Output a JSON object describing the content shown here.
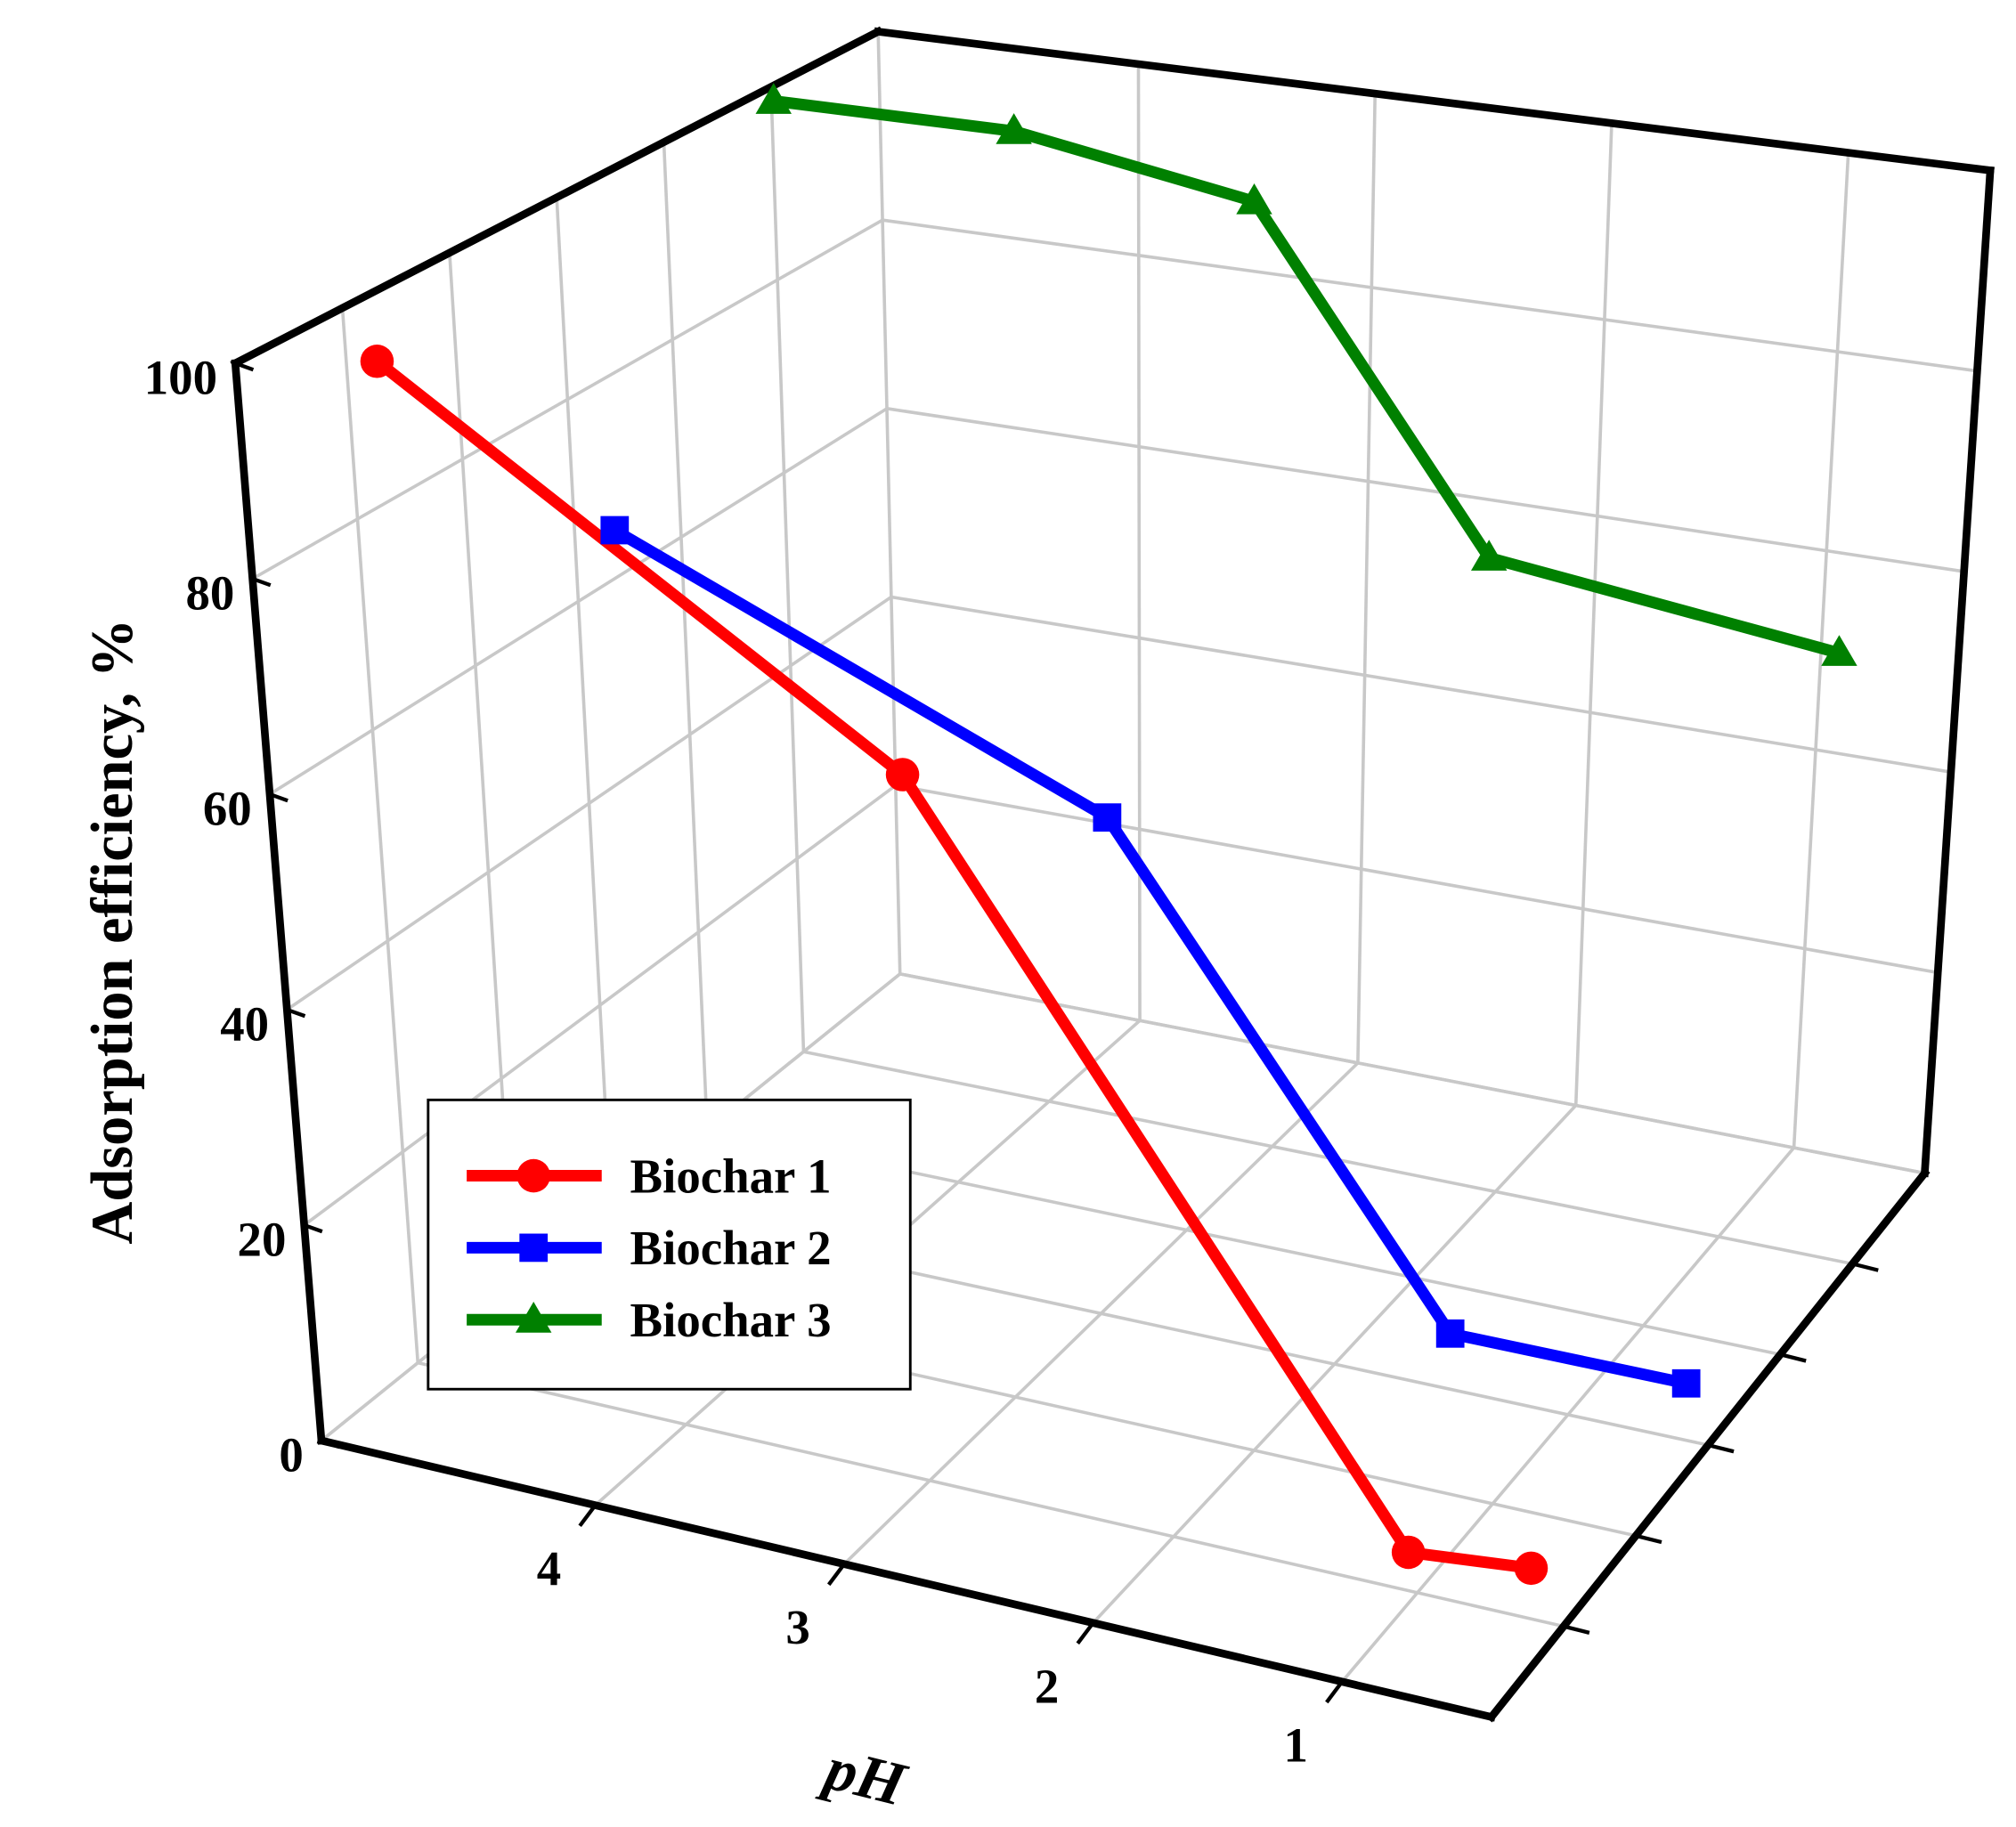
{
  "chart_data": {
    "type": "line3d",
    "ylabel": "Adsorption efficiency, %",
    "xlabel": "pH",
    "xlim": [
      5.1,
      0.4
    ],
    "xticks": [
      4,
      3,
      2,
      1
    ],
    "ylim": [
      0,
      100
    ],
    "yticks": [
      0,
      20,
      40,
      60,
      80,
      100
    ],
    "zlim": [
      0,
      6
    ],
    "zticks": [
      1,
      2,
      3,
      4,
      5
    ],
    "grid": true,
    "legend": "lower left",
    "series": [
      {
        "name": "Biochar 1",
        "color": "#ff0000",
        "marker": "circle",
        "z": 0.6,
        "x": [
          4.8,
          2.8,
          0.9,
          0.4
        ],
        "values": [
          98,
          67,
          7,
          8
        ]
      },
      {
        "name": "Biochar 2",
        "color": "#0000ff",
        "marker": "square",
        "z": 2.7,
        "x": [
          4.8,
          2.8,
          1.4,
          0.4
        ],
        "values": [
          70,
          50,
          8,
          8
        ]
      },
      {
        "name": "Biochar 3",
        "color": "#008000",
        "marker": "triangle",
        "z": 4.8,
        "x": [
          5,
          4,
          3,
          2,
          0.5
        ],
        "values": [
          100,
          100,
          96,
          64,
          60
        ]
      }
    ]
  }
}
